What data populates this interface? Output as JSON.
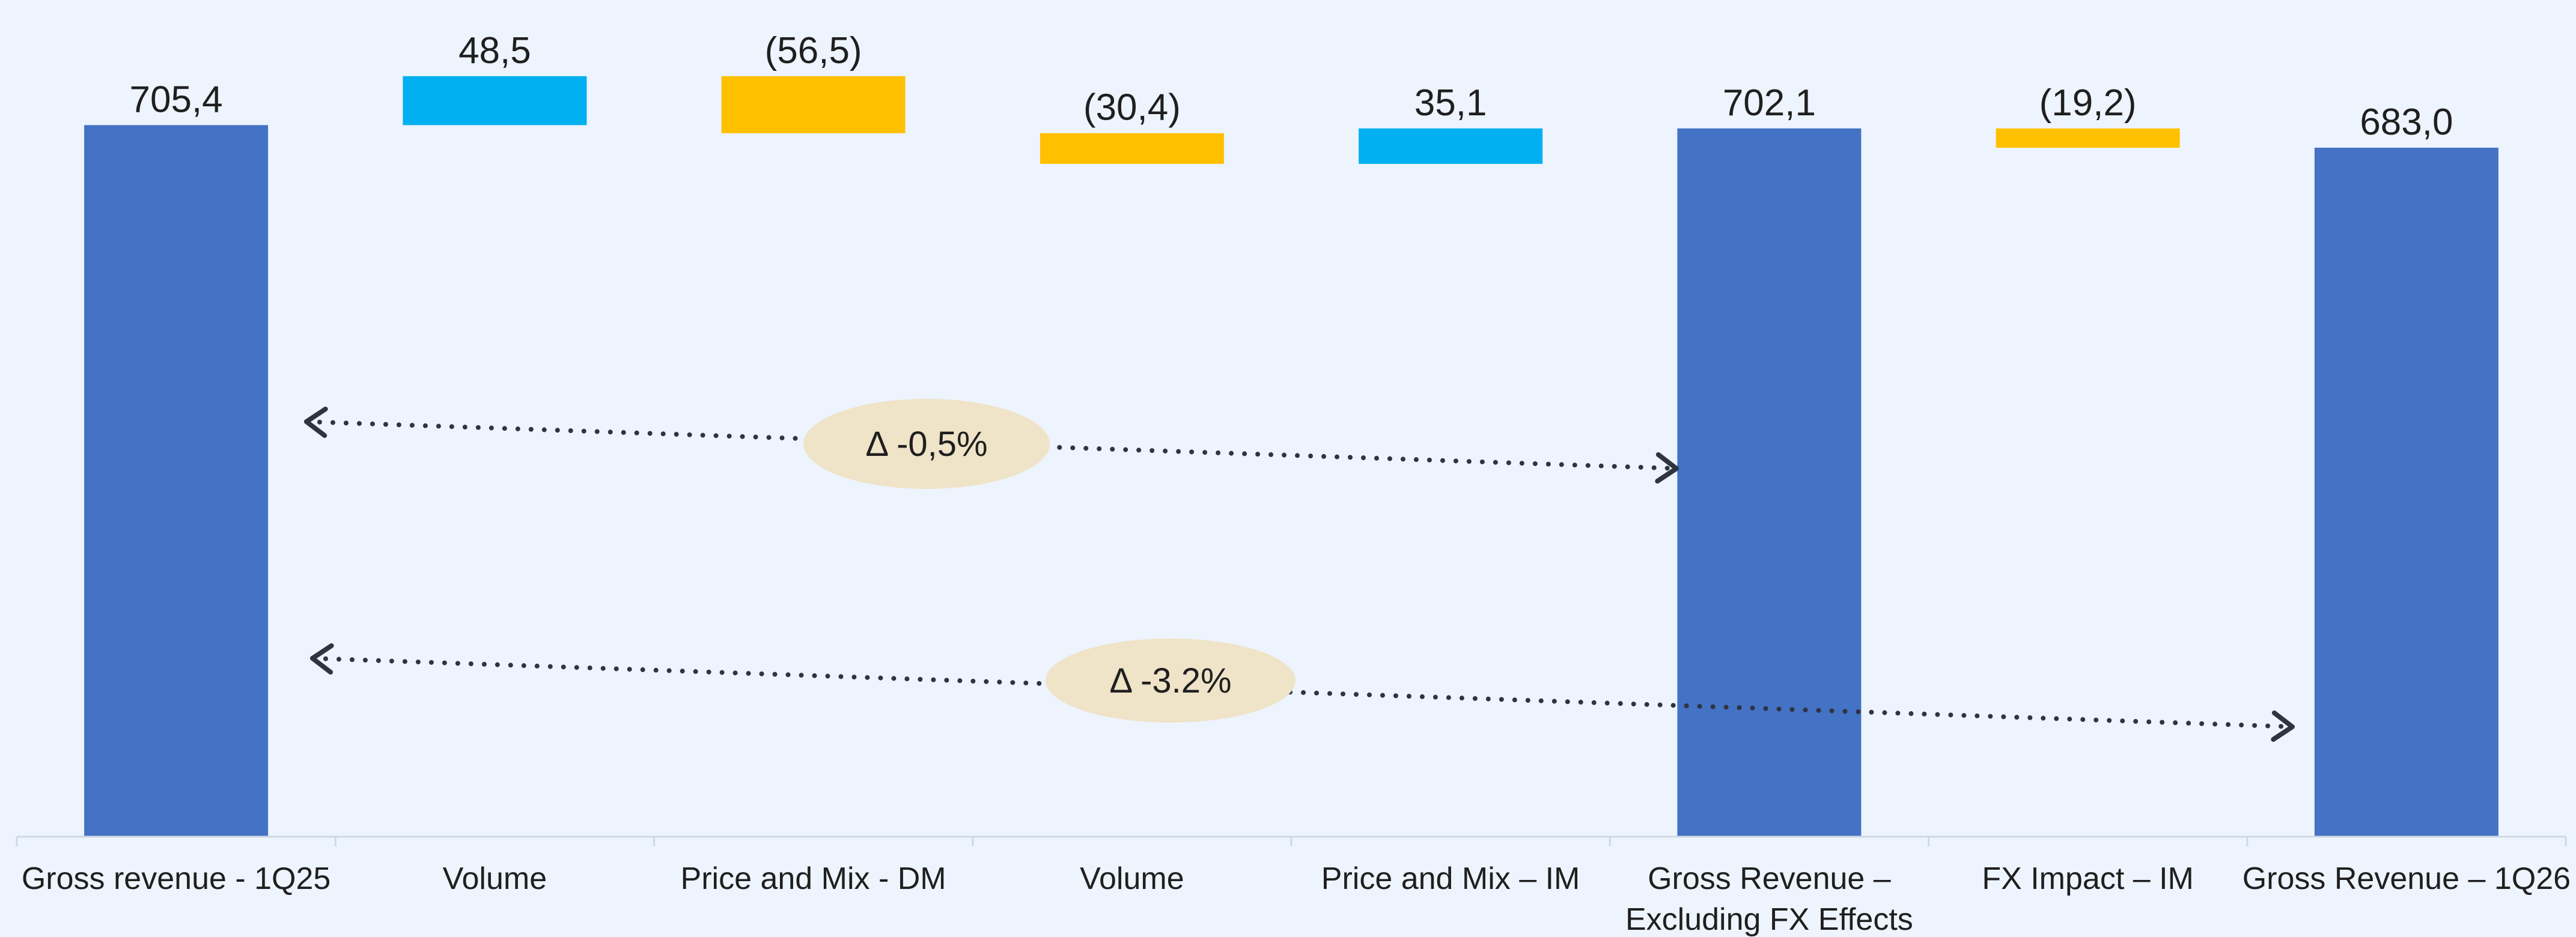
{
  "chart_data": {
    "type": "bar",
    "subtype": "waterfall",
    "title": "",
    "xlabel": "",
    "ylabel": "",
    "categories": [
      "Gross revenue - 1Q25",
      "Volume",
      "Price and Mix - DM",
      "Volume",
      "Price and Mix – IM",
      "Gross Revenue – Excluding FX Effects",
      "FX Impact – IM",
      "Gross Revenue – 1Q26"
    ],
    "values": [
      705.4,
      48.5,
      -56.5,
      -30.4,
      35.1,
      702.1,
      -19.2,
      683.0
    ],
    "bar_kind": [
      "total",
      "increase",
      "decrease",
      "decrease",
      "increase",
      "total",
      "decrease",
      "total"
    ],
    "value_labels": [
      "705,4",
      "48,5",
      "(56,5)",
      "(30,4)",
      "35,1",
      "702,1",
      "(19,2)",
      "683,0"
    ],
    "colors": {
      "total": "#4472C4",
      "increase": "#00B0F0",
      "decrease": "#FFC000"
    },
    "annotations": [
      {
        "text": "Δ -0,5%",
        "from_category": 0,
        "to_category": 5
      },
      {
        "text": "Δ -3.2%",
        "from_category": 0,
        "to_category": 7
      }
    ],
    "grid": false,
    "legend": "none"
  }
}
